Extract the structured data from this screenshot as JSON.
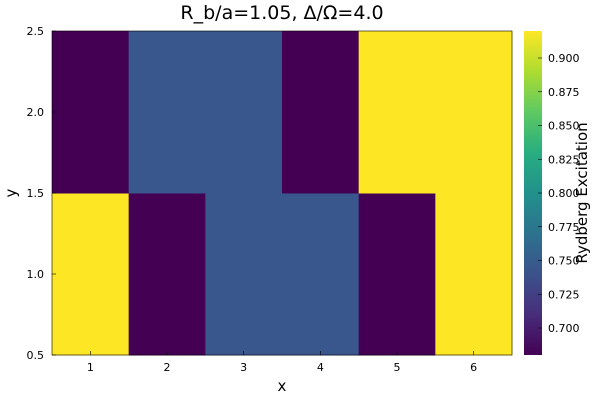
{
  "chart_data": {
    "type": "heatmap",
    "title": "R_b/a=1.05, Δ/Ω=4.0",
    "xlabel": "x",
    "ylabel": "y",
    "colorbar_label": "Rydberg Excitation",
    "colormap": "viridis",
    "x_centers": [
      1,
      2,
      3,
      4,
      5,
      6
    ],
    "y_centers": [
      1,
      2
    ],
    "xlim": [
      0.5,
      6.5
    ],
    "ylim": [
      0.5,
      2.5
    ],
    "clim": [
      0.68,
      0.92
    ],
    "x_ticks": [
      "1",
      "2",
      "3",
      "4",
      "5",
      "6"
    ],
    "y_ticks": [
      "0.5",
      "1.0",
      "1.5",
      "2.0",
      "2.5"
    ],
    "colorbar_ticks": [
      "0.700",
      "0.725",
      "0.750",
      "0.775",
      "0.800",
      "0.825",
      "0.850",
      "0.875",
      "0.900"
    ],
    "values": [
      [
        0.92,
        0.68,
        0.745,
        0.745,
        0.68,
        0.92
      ],
      [
        0.68,
        0.745,
        0.745,
        0.68,
        0.92,
        0.92
      ]
    ]
  }
}
